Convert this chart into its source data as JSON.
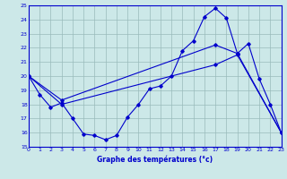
{
  "title": "Graphe des températures (°c)",
  "bg_color": "#cce8e8",
  "line_color": "#0000cc",
  "grid_color": "#99bbbb",
  "ylim": [
    15,
    25
  ],
  "xlim": [
    0,
    23
  ],
  "yticks": [
    15,
    16,
    17,
    18,
    19,
    20,
    21,
    22,
    23,
    24,
    25
  ],
  "xticks": [
    0,
    1,
    2,
    3,
    4,
    5,
    6,
    7,
    8,
    9,
    10,
    11,
    12,
    13,
    14,
    15,
    16,
    17,
    18,
    19,
    20,
    21,
    22,
    23
  ],
  "line1_x": [
    0,
    1,
    2,
    3,
    4,
    5,
    6,
    7,
    8,
    9,
    10,
    11,
    12,
    13,
    14,
    15,
    16,
    17,
    18,
    19,
    20,
    21,
    22,
    23
  ],
  "line1_y": [
    20.0,
    18.7,
    17.8,
    18.1,
    17.0,
    15.9,
    15.8,
    15.5,
    15.8,
    17.1,
    18.0,
    19.1,
    19.3,
    20.0,
    21.8,
    22.5,
    24.2,
    24.8,
    24.1,
    21.6,
    22.3,
    19.8,
    18.0,
    16.0
  ],
  "line2_x": [
    0,
    3,
    17,
    19,
    23
  ],
  "line2_y": [
    20.0,
    18.3,
    22.2,
    21.6,
    16.0
  ],
  "line3_x": [
    0,
    3,
    17,
    19,
    23
  ],
  "line3_y": [
    20.0,
    18.0,
    20.8,
    21.5,
    16.0
  ]
}
